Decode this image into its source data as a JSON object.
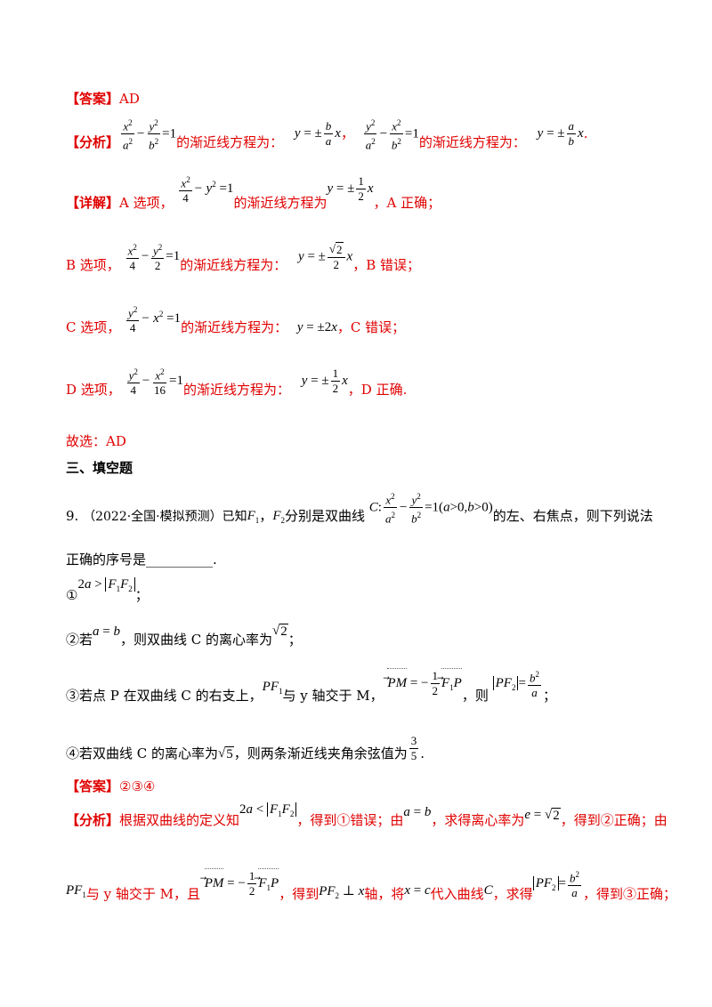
{
  "q8": {
    "answer_label": "【答案】",
    "answer_value": "AD",
    "analysis_label": "【分析】",
    "asym_text_1": "的渐近线方程为：",
    "asym_text_2": "的渐近线方程为：",
    "comma": "，",
    "period": ".",
    "detail_label": "【详解】",
    "opt_a_prefix": "A 选项，",
    "opt_a_mid": "的渐近线方程为",
    "opt_a_end": "，A 正确；",
    "opt_b_prefix": "B 选项，",
    "opt_b_mid": "的渐近线方程为：",
    "opt_b_end": "，B 错误；",
    "opt_c_prefix": "C 选项，",
    "opt_c_mid": "的渐近线方程为：",
    "opt_c_end": "，C 错误；",
    "opt_d_prefix": "D 选项，",
    "opt_d_mid": "的渐近线方程为：",
    "opt_d_end": "，D 正确.",
    "conclusion": "故选：AD"
  },
  "section3": {
    "title": "三、填空题"
  },
  "q9": {
    "number": "9.",
    "source": "（2022·全国·模拟预测）已知",
    "text_a": "，",
    "text_b": "分别是双曲线",
    "text_c": "的左、右焦点，则下列说法",
    "line2": "正确的序号是__________.",
    "item1_mark": "①",
    "item1_end": "；",
    "item2_a": "②若",
    "item2_b": "，则双曲线 C 的离心率为",
    "item2_end": "；",
    "item3_a": "③若点 P 在双曲线 C 的右支上，",
    "item3_b": "与 y 轴交于 M，",
    "item3_c": "，则",
    "item3_end": "；",
    "item4_a": "④若双曲线 C 的离心率为",
    "item4_b": "，则两条渐近线夹角余弦值为",
    "item4_end": ".",
    "answer_label": "【答案】",
    "answer_value": "②③④",
    "analysis_label": "【分析】",
    "analysis_a": "根据双曲线的定义知",
    "analysis_b": "，得到①错误；由",
    "analysis_c": "，求得离心率为",
    "analysis_d": "，得到②正确；由",
    "analysis2_a": "与 y 轴交于 M，且",
    "analysis2_b": "，得到",
    "analysis2_c": "轴，将",
    "analysis2_d": "代入曲线",
    "analysis2_e": "，求得",
    "analysis2_f": "，得到③正确；"
  }
}
